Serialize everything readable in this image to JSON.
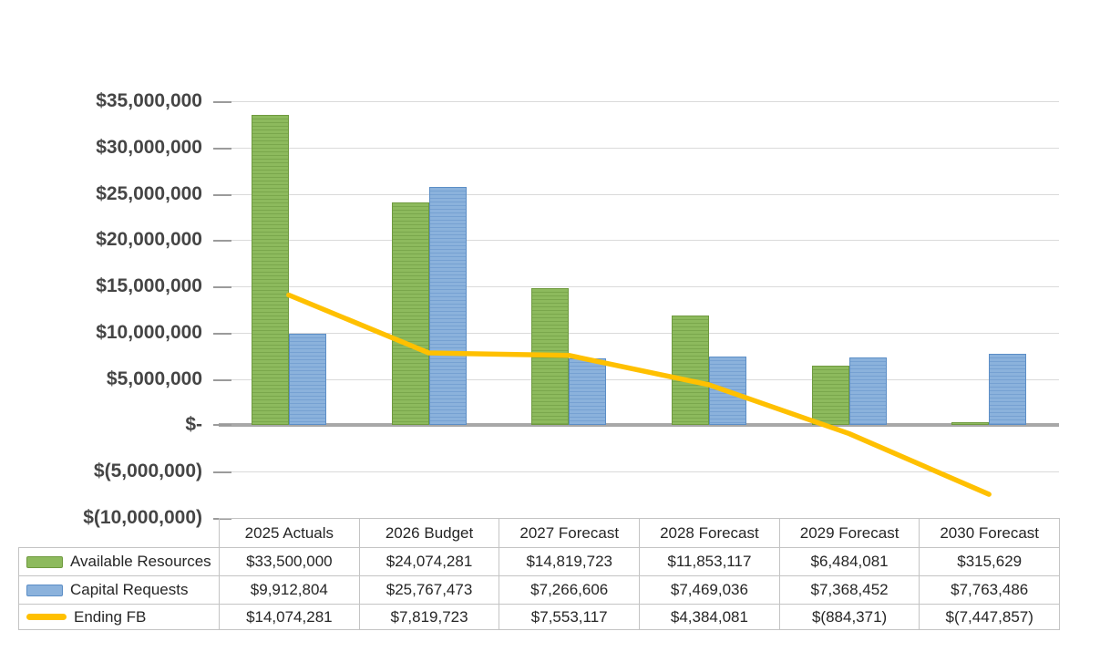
{
  "chart_data": {
    "type": "combo",
    "title": "",
    "xlabel": "",
    "ylabel": "",
    "categories": [
      "2025 Actuals",
      "2026 Budget",
      "2027 Forecast",
      "2028 Forecast",
      "2029 Forecast",
      "2030 Forecast"
    ],
    "series": [
      {
        "name": "Available Resources",
        "type": "bar",
        "color": "#8dba5d",
        "border_color": "#6f9a3f",
        "values": [
          33500000,
          24074281,
          14819723,
          11853117,
          6484081,
          315629
        ]
      },
      {
        "name": "Capital Requests",
        "type": "bar",
        "color": "#8bb2dc",
        "border_color": "#5c8ec6",
        "values": [
          9912804,
          25767473,
          7266606,
          7469036,
          7368452,
          7763486
        ]
      },
      {
        "name": "Ending FB",
        "type": "line",
        "color": "#ffc000",
        "values": [
          14074281,
          7819723,
          7553117,
          4384081,
          -884371,
          -7447857
        ]
      }
    ],
    "ylim": [
      -10000000,
      35000000
    ],
    "ytick_step": 5000000,
    "y_tick_labels": [
      "$35,000,000",
      "$30,000,000",
      "$25,000,000",
      "$20,000,000",
      "$15,000,000",
      "$10,000,000",
      "$5,000,000",
      "$-",
      "$(5,000,000)",
      "$(10,000,000)"
    ],
    "grid": "horizontal",
    "legend_position": "table-left"
  },
  "table": {
    "headers": [
      "2025 Actuals",
      "2026 Budget",
      "2027 Forecast",
      "2028 Forecast",
      "2029 Forecast",
      "2030 Forecast"
    ],
    "rows": [
      {
        "label": "Available Resources",
        "swatch": "bar-green",
        "values": [
          "$33,500,000",
          "$24,074,281",
          "$14,819,723",
          "$11,853,117",
          "$6,484,081",
          "$315,629"
        ]
      },
      {
        "label": "Capital Requests",
        "swatch": "bar-blue",
        "values": [
          "$9,912,804",
          "$25,767,473",
          "$7,266,606",
          "$7,469,036",
          "$7,368,452",
          "$7,763,486"
        ]
      },
      {
        "label": "Ending FB",
        "swatch": "line-yellow",
        "values": [
          "$14,074,281",
          "$7,819,723",
          "$7,553,117",
          "$4,384,081",
          "$(884,371)",
          "$(7,447,857)"
        ]
      }
    ]
  },
  "colors": {
    "bar_green": "#8dba5d",
    "bar_green_border": "#6f9a3f",
    "bar_blue": "#8bb2dc",
    "bar_blue_border": "#5c8ec6",
    "line_gold": "#ffc000",
    "gridline": "#dadada",
    "zero_axis": "#a8a8a8",
    "axis_text": "#454545",
    "table_text": "#262626",
    "table_border": "#c4c4c4"
  }
}
